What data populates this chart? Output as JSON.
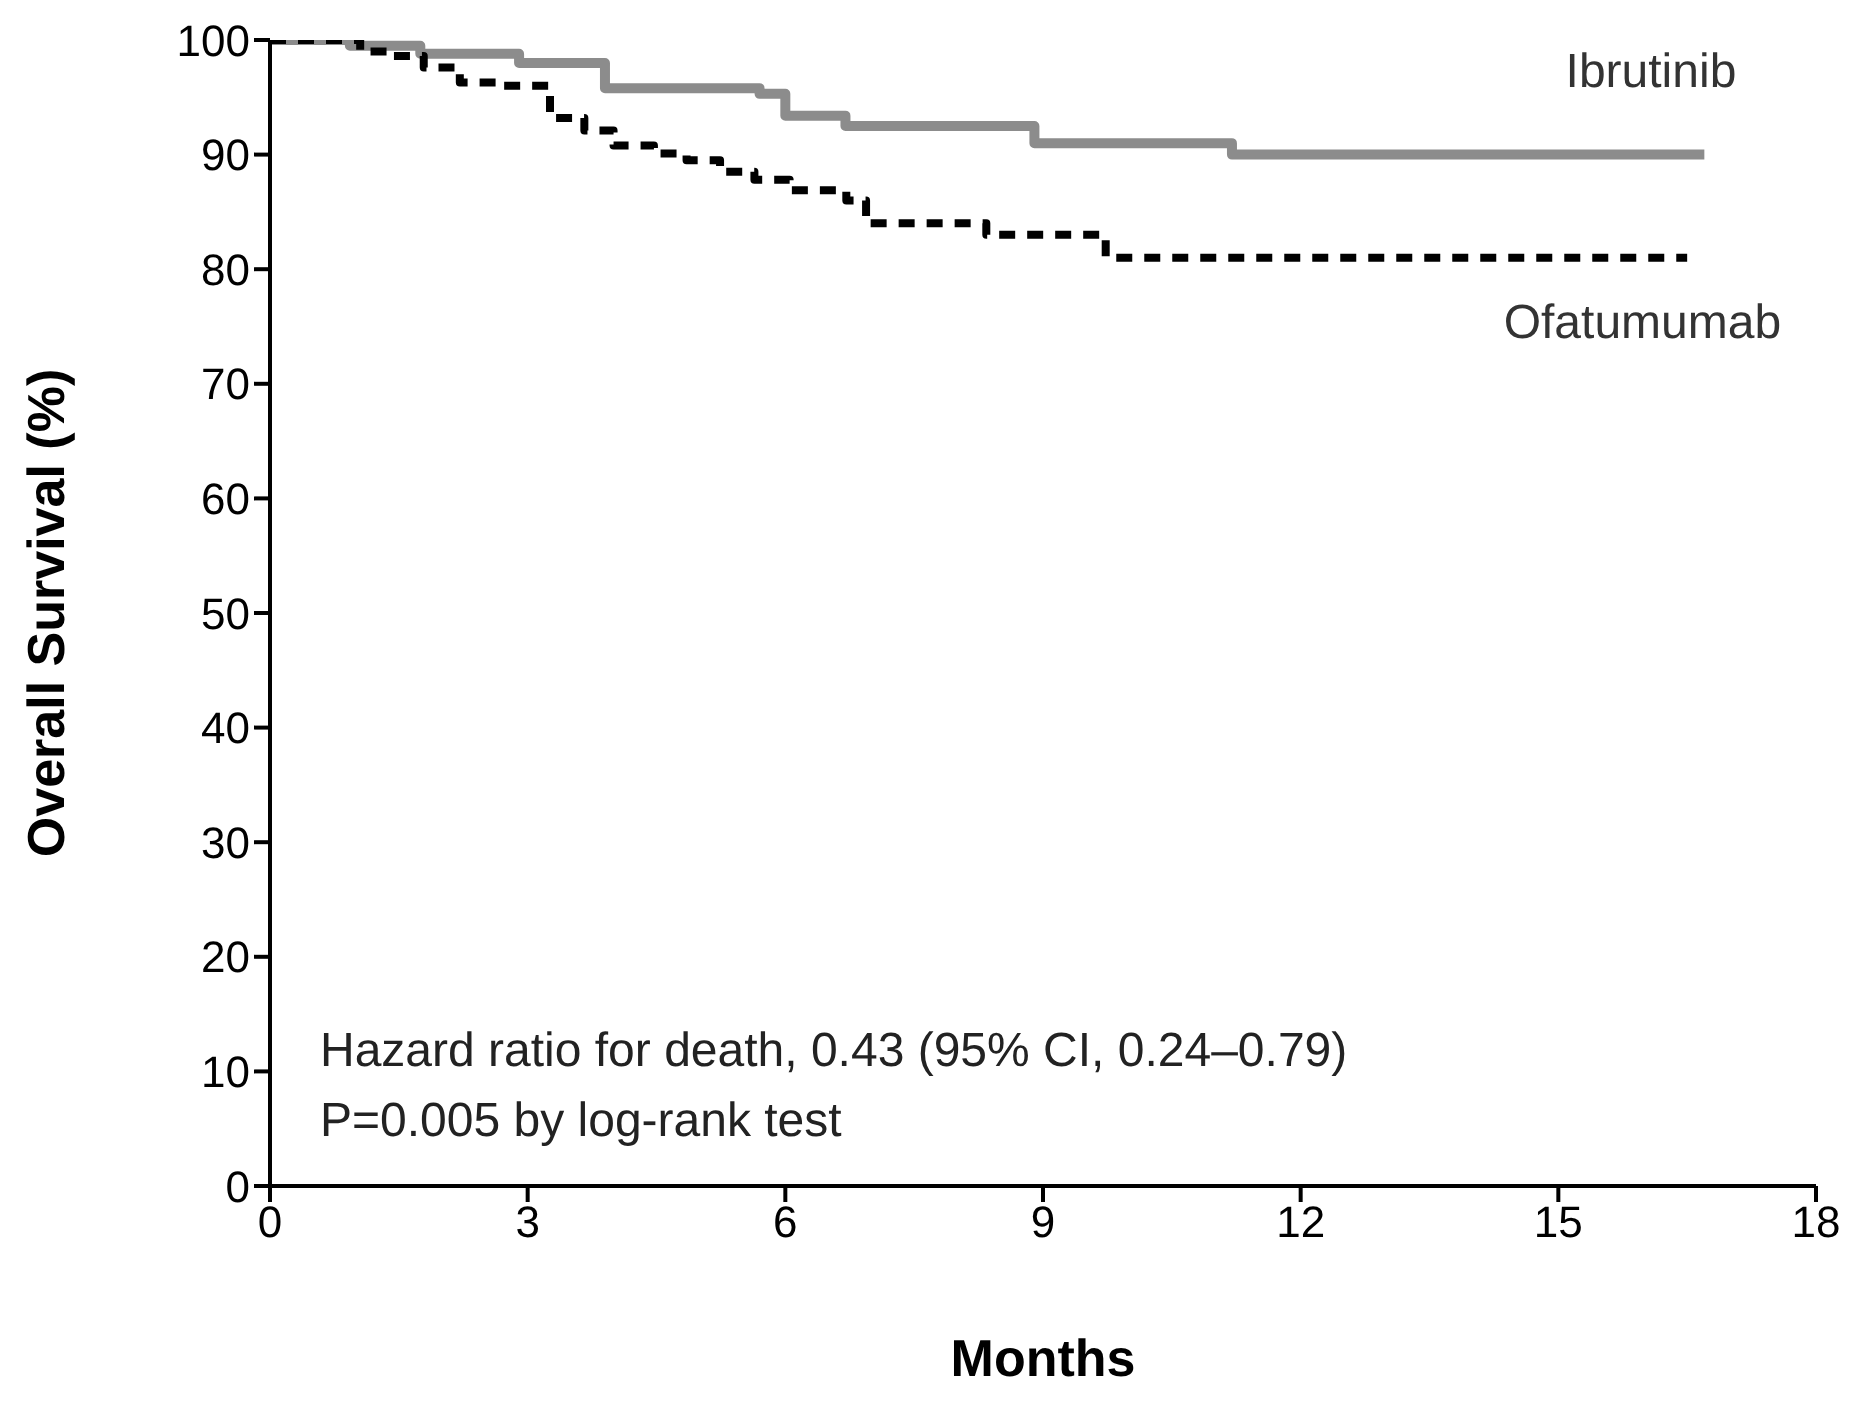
{
  "chart_data": {
    "type": "step",
    "xlabel": "Months",
    "ylabel": "Overall Survival (%)",
    "xlim": [
      0,
      18
    ],
    "xticks": [
      0,
      3,
      6,
      9,
      12,
      15,
      18
    ],
    "ylim": [
      0,
      100
    ],
    "yticks": [
      0,
      10,
      20,
      30,
      40,
      50,
      60,
      70,
      80,
      90,
      100
    ],
    "marker": "none",
    "series": [
      {
        "name": "Ibrutinib",
        "color": "#8c8c8c",
        "line_style": "solid",
        "x": [
          0,
          0.93,
          1.75,
          2.9,
          3.9,
          5.7,
          6.0,
          6.7,
          8.9,
          11.2,
          16.7
        ],
        "values": [
          100,
          99.5,
          98.8,
          98,
          95.8,
          95.3,
          93.4,
          92.5,
          91,
          90,
          90
        ]
      },
      {
        "name": "Ofatumumab",
        "color": "#000000",
        "line_style": "dashed",
        "x": [
          0,
          1.05,
          1.44,
          1.79,
          2.21,
          2.72,
          3.26,
          3.66,
          4.0,
          4.47,
          4.85,
          5.24,
          5.64,
          6.05,
          6.71,
          6.94,
          8.34,
          9.73,
          16.5
        ],
        "values": [
          100,
          99,
          98.6,
          97.6,
          96.3,
          96,
          93.2,
          92.1,
          90.8,
          90.1,
          89.5,
          88.5,
          87.8,
          86.9,
          86,
          84,
          83,
          81,
          81
        ]
      }
    ],
    "annotations": [
      "Hazard ratio for death, 0.43 (95% CI, 0.24–0.79)",
      "P=0.005 by log-rank test"
    ]
  }
}
